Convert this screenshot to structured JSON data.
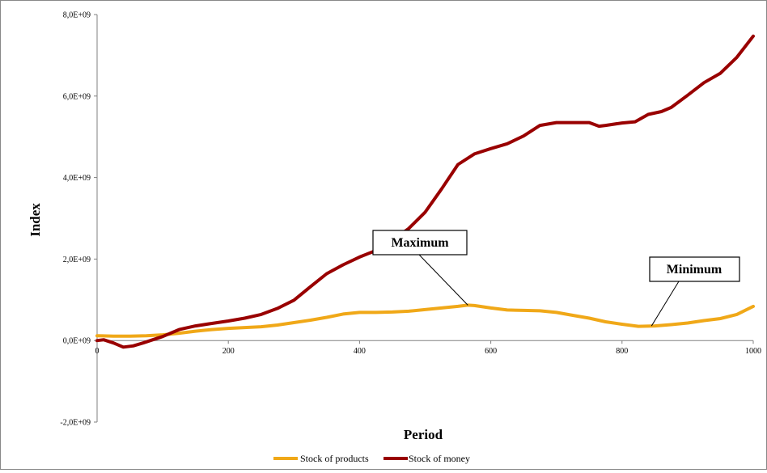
{
  "chart_data": {
    "type": "line",
    "title": "",
    "xlabel": "Period",
    "ylabel": "Index",
    "xlim": [
      0,
      1000
    ],
    "ylim": [
      -2000000000,
      8000000000
    ],
    "x_ticks": [
      0,
      200,
      400,
      600,
      800,
      1000
    ],
    "x_tick_labels": [
      "0",
      "200",
      "400",
      "600",
      "800",
      "1000"
    ],
    "y_ticks": [
      -2000000000,
      0,
      2000000000,
      4000000000,
      6000000000,
      8000000000
    ],
    "y_tick_labels": [
      "-2,0E+09",
      "0,0E+09",
      "2,0E+09",
      "4,0E+09",
      "6,0E+09",
      "8,0E+09"
    ],
    "grid": false,
    "legend_position": "bottom",
    "series": [
      {
        "name": "Stock of products",
        "color": "#F0A818",
        "x": [
          0,
          25,
          50,
          75,
          100,
          125,
          150,
          175,
          200,
          225,
          250,
          275,
          300,
          325,
          350,
          375,
          400,
          425,
          450,
          475,
          500,
          525,
          550,
          565,
          575,
          600,
          625,
          650,
          675,
          700,
          725,
          750,
          775,
          800,
          825,
          850,
          875,
          900,
          925,
          950,
          975,
          1000
        ],
        "y": [
          120000000,
          110000000,
          110000000,
          120000000,
          140000000,
          180000000,
          230000000,
          270000000,
          300000000,
          320000000,
          340000000,
          380000000,
          440000000,
          500000000,
          570000000,
          650000000,
          690000000,
          690000000,
          700000000,
          720000000,
          760000000,
          800000000,
          840000000,
          870000000,
          860000000,
          800000000,
          750000000,
          740000000,
          730000000,
          690000000,
          620000000,
          550000000,
          460000000,
          400000000,
          350000000,
          360000000,
          390000000,
          430000000,
          490000000,
          540000000,
          640000000,
          840000000
        ]
      },
      {
        "name": "Stock of money",
        "color": "#990000",
        "x": [
          0,
          10,
          25,
          40,
          55,
          70,
          85,
          100,
          125,
          150,
          175,
          200,
          225,
          250,
          275,
          300,
          325,
          350,
          375,
          400,
          425,
          450,
          475,
          500,
          525,
          550,
          575,
          600,
          625,
          650,
          675,
          700,
          725,
          750,
          765,
          775,
          800,
          820,
          840,
          860,
          875,
          900,
          925,
          950,
          975,
          1000
        ],
        "y": [
          0,
          20000000,
          -60000000,
          -160000000,
          -130000000,
          -60000000,
          20000000,
          100000000,
          270000000,
          360000000,
          420000000,
          480000000,
          550000000,
          640000000,
          790000000,
          990000000,
          1320000000,
          1640000000,
          1860000000,
          2050000000,
          2210000000,
          2460000000,
          2750000000,
          3150000000,
          3720000000,
          4320000000,
          4580000000,
          4710000000,
          4830000000,
          5020000000,
          5280000000,
          5350000000,
          5350000000,
          5350000000,
          5260000000,
          5280000000,
          5340000000,
          5370000000,
          5550000000,
          5620000000,
          5720000000,
          6020000000,
          6330000000,
          6560000000,
          6950000000,
          7470000000
        ]
      }
    ],
    "annotations": [
      {
        "text": "Maximum",
        "target_x": 565,
        "target_y": 870000000
      },
      {
        "text": "Minimum",
        "target_x": 845,
        "target_y": 360000000
      }
    ]
  }
}
